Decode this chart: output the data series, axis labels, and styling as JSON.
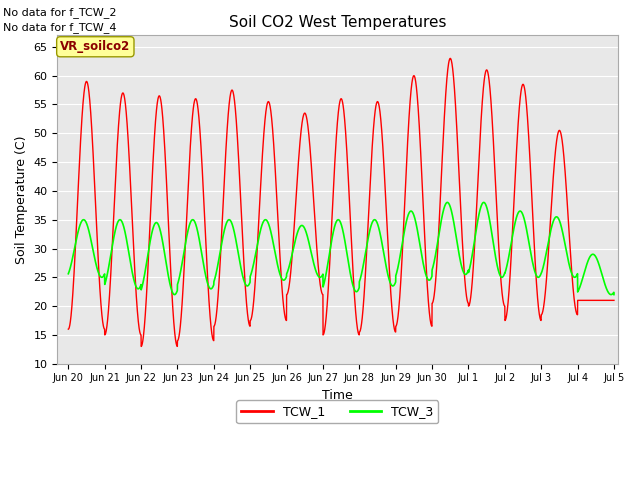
{
  "title": "Soil CO2 West Temperatures",
  "xlabel": "Time",
  "ylabel": "Soil Temperature (C)",
  "ylim": [
    10,
    67
  ],
  "yticks": [
    10,
    15,
    20,
    25,
    30,
    35,
    40,
    45,
    50,
    55,
    60,
    65
  ],
  "background_color": "#e8e8e8",
  "no_data_text": [
    "No data for f_TCW_2",
    "No data for f_TCW_4"
  ],
  "label_box_text": "VR_soilco2",
  "label_box_color": "#ffff99",
  "label_box_border": "#999900",
  "line1_color": "red",
  "line2_color": "lime",
  "legend_labels": [
    "TCW_1",
    "TCW_3"
  ],
  "tick_labels": [
    "Jun 20",
    "Jun 21",
    "Jun 22",
    "Jun 23",
    "Jun 24",
    "Jun 25",
    "Jun 26",
    "Jun 27",
    "Jun 28",
    "Jun 29",
    "Jun 30",
    "Jul 1",
    "Jul 2",
    "Jul 3",
    "Jul 4",
    "Jul 5"
  ],
  "tcw1_peaks": [
    59,
    57,
    56.5,
    56,
    57.5,
    55.5,
    53.5,
    56,
    55.5,
    60,
    63,
    61,
    58.5,
    50.5,
    21
  ],
  "tcw1_troughs": [
    16,
    15,
    13,
    14,
    16.5,
    17.5,
    22,
    15,
    15.5,
    16.5,
    20.5,
    20,
    17.5,
    18.5,
    21
  ],
  "tcw3_peaks": [
    35,
    35,
    34.5,
    35,
    35,
    35,
    34,
    35,
    35,
    36.5,
    38,
    38,
    36.5,
    35.5,
    29
  ],
  "tcw3_troughs": [
    25,
    23,
    22,
    23,
    23.5,
    24.5,
    25,
    22.5,
    23.5,
    24.5,
    25.5,
    25,
    25,
    25,
    22
  ]
}
